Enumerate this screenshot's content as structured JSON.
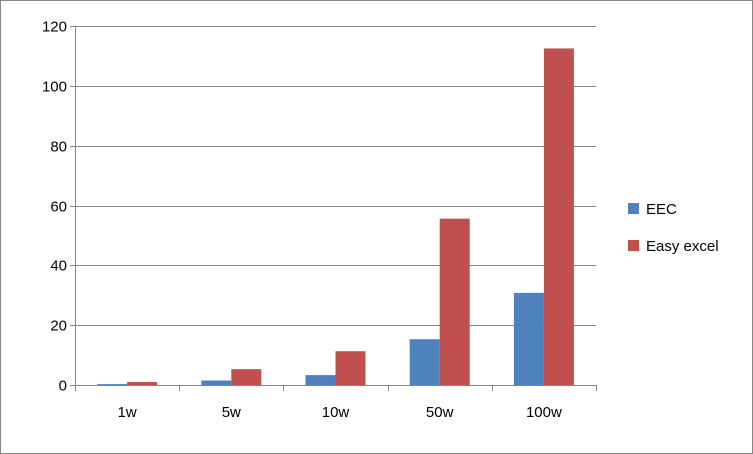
{
  "chart_data": {
    "type": "bar",
    "categories": [
      "1w",
      "5w",
      "10w",
      "50w",
      "100w"
    ],
    "series": [
      {
        "name": "EEC",
        "color": "#4f81bd",
        "values": [
          0.3,
          1.5,
          3.3,
          15.3,
          30.8
        ]
      },
      {
        "name": "Easy excel",
        "color": "#c0504d",
        "values": [
          1.0,
          5.3,
          11.3,
          55.6,
          112.5
        ]
      }
    ],
    "ylim": [
      0,
      120
    ],
    "yticks": [
      0,
      20,
      40,
      60,
      80,
      100,
      120
    ],
    "grid": true,
    "legend": "right"
  }
}
